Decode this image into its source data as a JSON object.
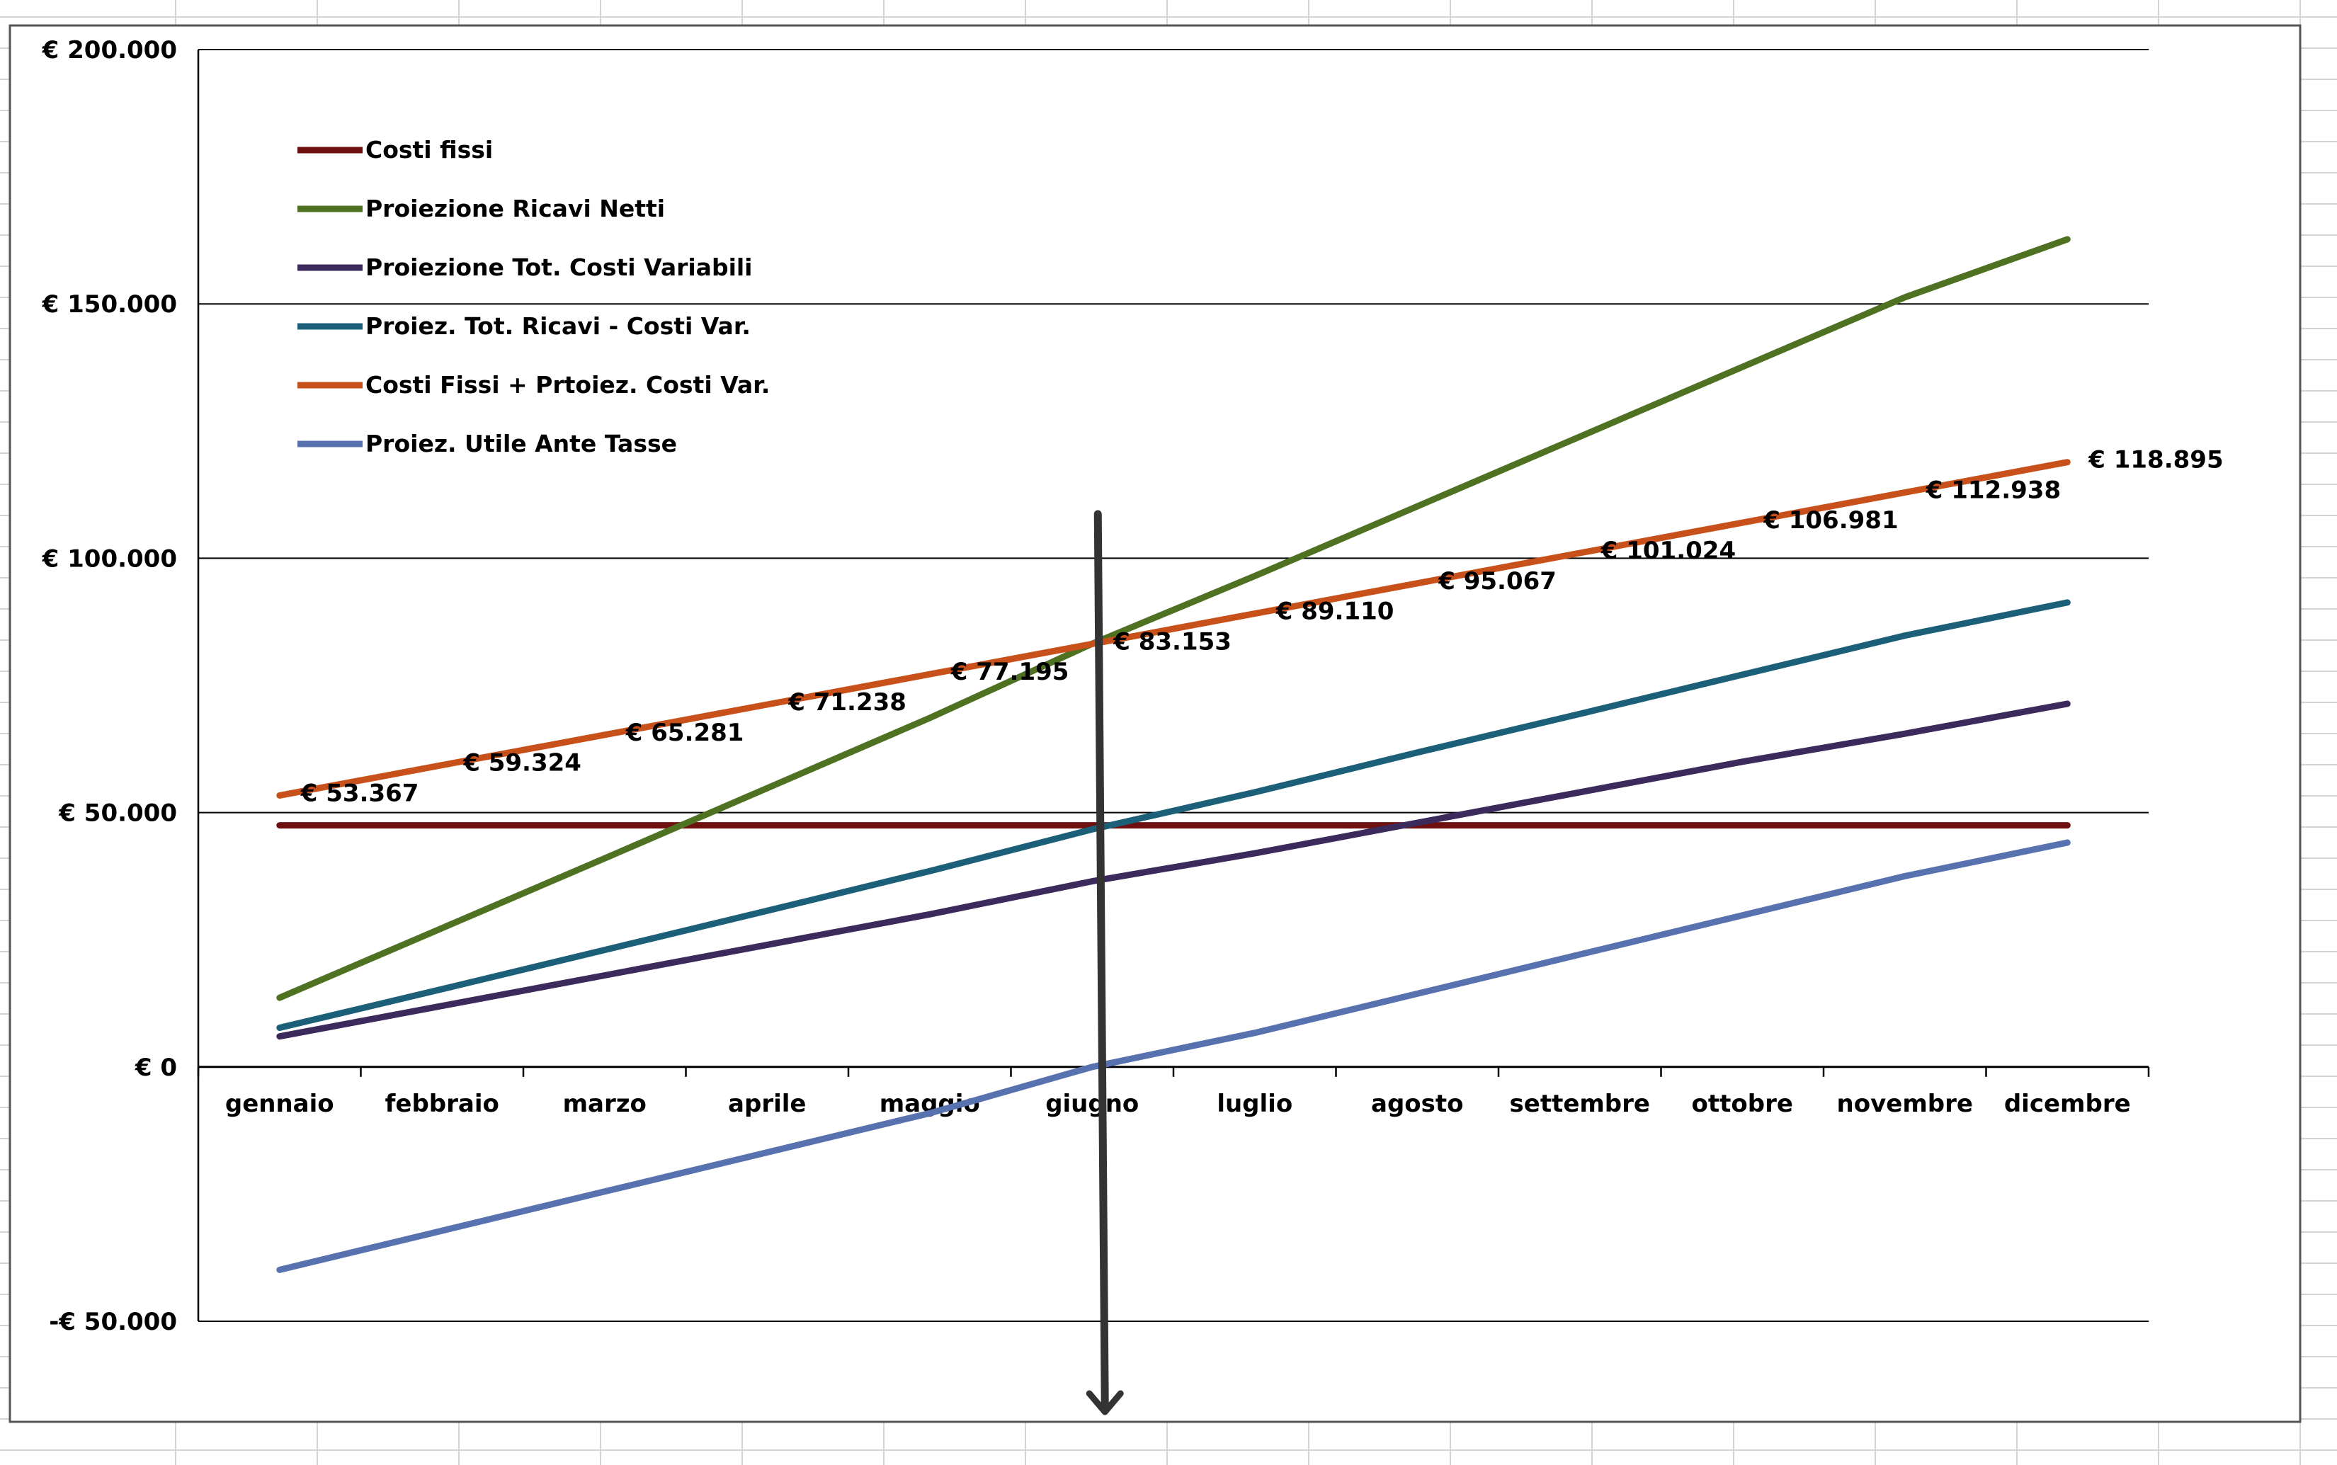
{
  "colors": {
    "Costi fissi": "#6e1010",
    "Proiezione Ricavi Netti": "#4e7222",
    "Proiezione Tot. Costi Variabili": "#3d2a5c",
    "Proiez. Tot. Ricavi - Costi Var.": "#1c5f78",
    "Costi Fissi + Prtoiez. Costi Var.": "#c8501a",
    "Proiez. Utile Ante Tasse": "#5872b0",
    "arrow": "#333333",
    "gridline": "#000000"
  },
  "chart_data": {
    "type": "line",
    "title": "",
    "xlabel": "",
    "ylabel": "",
    "ylim": [
      -50000,
      200000
    ],
    "yticks": [
      {
        "value": 200000,
        "label": "€ 200.000"
      },
      {
        "value": 150000,
        "label": "€ 150.000"
      },
      {
        "value": 100000,
        "label": "€ 100.000"
      },
      {
        "value": 50000,
        "label": "€ 50.000"
      },
      {
        "value": 0,
        "label": "€ 0"
      },
      {
        "value": -50000,
        "label": "-€ 50.000"
      }
    ],
    "grid": true,
    "legend_position": "top-left",
    "categories": [
      "gennaio",
      "febbraio",
      "marzo",
      "aprile",
      "maggio",
      "giugno",
      "luglio",
      "agosto",
      "settembre",
      "ottobre",
      "novembre",
      "dicembre"
    ],
    "series": [
      {
        "name": "Costi fissi",
        "values": [
          47500,
          47500,
          47500,
          47500,
          47500,
          47500,
          47500,
          47500,
          47500,
          47500,
          47500,
          47500
        ]
      },
      {
        "name": "Proiezione Ricavi Netti",
        "values": [
          13600,
          27300,
          41000,
          54800,
          68600,
          83200,
          96500,
          110200,
          123900,
          137600,
          151300,
          162700
        ]
      },
      {
        "name": "Proiezione Tot. Costi Variabili",
        "values": [
          6000,
          12000,
          18000,
          24000,
          30000,
          36500,
          42000,
          48000,
          54000,
          60000,
          65500,
          71400
        ]
      },
      {
        "name": "Proiez. Tot. Ricavi - Costi Var.",
        "values": [
          7700,
          15300,
          23000,
          30700,
          38500,
          46700,
          54000,
          61800,
          69400,
          77100,
          84800,
          91300
        ]
      },
      {
        "name": "Costi Fissi + Prtoiez. Costi Var.",
        "values": [
          53367,
          59324,
          65281,
          71238,
          77195,
          83153,
          89110,
          95067,
          101024,
          106981,
          112938,
          118895
        ],
        "data_labels": [
          "€ 53.367",
          "€ 59.324",
          "€ 65.281",
          "€ 71.238",
          "€ 77.195",
          "€ 83.153",
          "€ 89.110",
          "€ 95.067",
          "€ 101.024",
          "€ 106.981",
          "€ 112.938",
          "€ 118.895"
        ]
      },
      {
        "name": "Proiez. Utile Ante Tasse",
        "values": [
          -39900,
          -32200,
          -24500,
          -16800,
          -9100,
          0,
          6700,
          14400,
          22100,
          29800,
          37500,
          44100
        ]
      }
    ],
    "annotations": [
      {
        "type": "vertical-arrow",
        "category": "giugno",
        "direction": "down"
      }
    ]
  }
}
